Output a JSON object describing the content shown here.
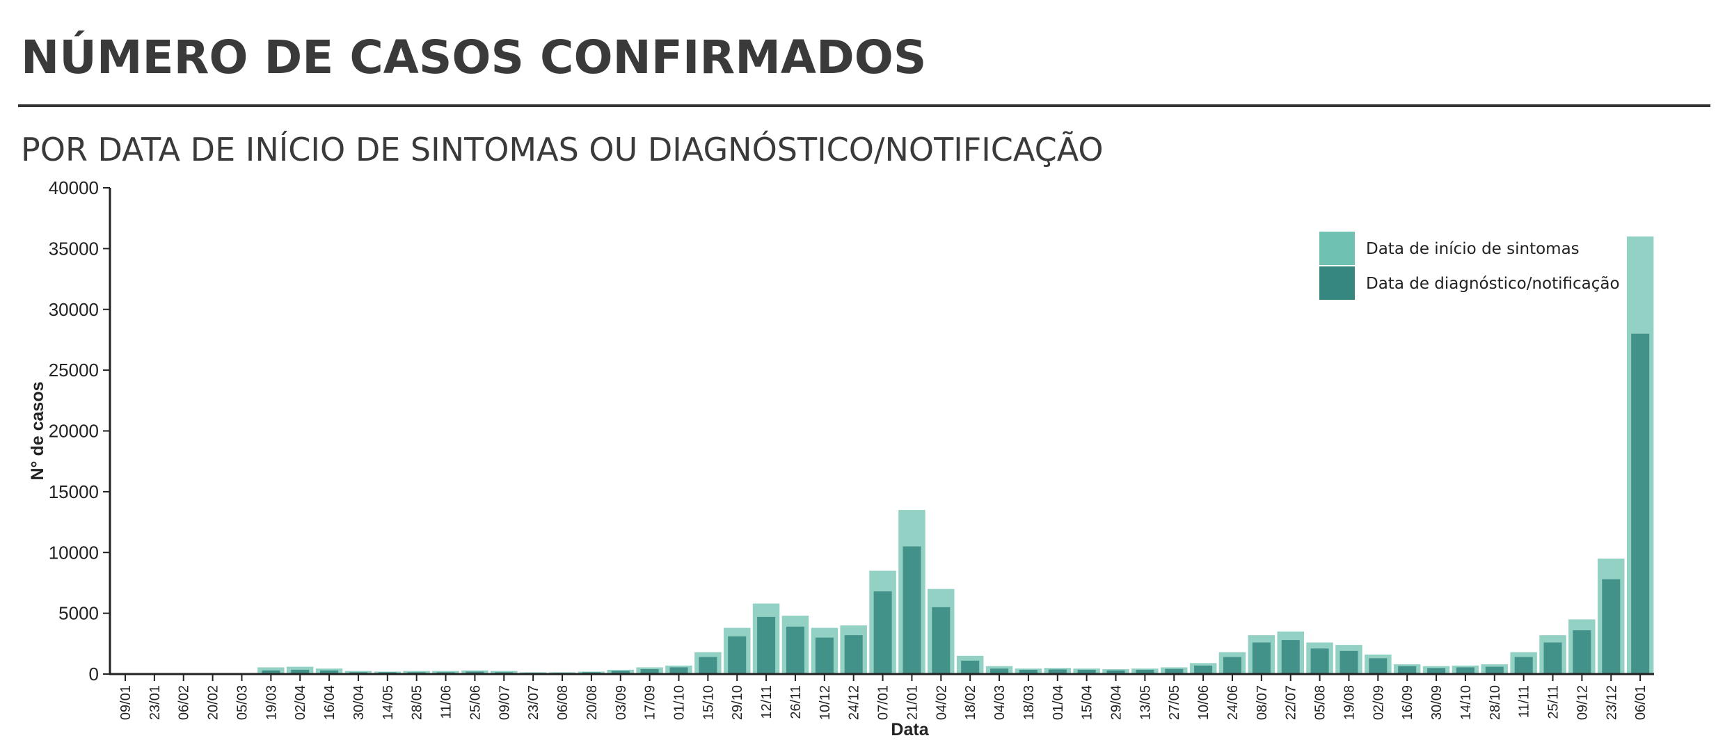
{
  "header": {
    "title": "NÚMERO DE CASOS CONFIRMADOS",
    "subtitle": "POR DATA DE INÍCIO DE SINTOMAS OU DIAGNÓSTICO/NOTIFICAÇÃO"
  },
  "colors": {
    "symptom_onset": "#6fc2b2",
    "diagnosis": "#35877f",
    "axis": "#222222"
  },
  "legend": {
    "placement": "top-right",
    "items": [
      {
        "label": "Data de início de sintomas",
        "color": "#6fc2b2"
      },
      {
        "label": "Data de diagnóstico/notificação",
        "color": "#35877f"
      }
    ]
  },
  "chart_data": {
    "type": "bar",
    "xlabel": "Data",
    "ylabel": "N° de casos",
    "ylim": [
      0,
      40000
    ],
    "yticks": [
      0,
      5000,
      10000,
      15000,
      20000,
      25000,
      30000,
      35000,
      40000
    ],
    "grid": false,
    "categories": [
      "09/01",
      "23/01",
      "06/02",
      "20/02",
      "05/03",
      "19/03",
      "02/04",
      "16/04",
      "30/04",
      "14/05",
      "28/05",
      "11/06",
      "25/06",
      "09/07",
      "23/07",
      "06/08",
      "20/08",
      "03/09",
      "17/09",
      "01/10",
      "15/10",
      "29/10",
      "12/11",
      "26/11",
      "10/12",
      "24/12",
      "07/01",
      "21/01",
      "04/02",
      "18/02",
      "04/03",
      "18/03",
      "01/04",
      "15/04",
      "29/04",
      "13/05",
      "27/05",
      "10/06",
      "24/06",
      "08/07",
      "22/07",
      "05/08",
      "19/08",
      "02/09",
      "16/09",
      "30/09",
      "14/10",
      "28/10",
      "11/11",
      "25/11",
      "09/12",
      "23/12",
      "06/01"
    ],
    "series": [
      {
        "name": "Data de início de sintomas",
        "values": [
          0,
          0,
          0,
          0,
          50,
          550,
          600,
          450,
          250,
          200,
          250,
          250,
          300,
          250,
          150,
          150,
          200,
          350,
          550,
          700,
          1800,
          3800,
          5800,
          4800,
          3800,
          4000,
          8500,
          13500,
          7000,
          1500,
          650,
          450,
          500,
          450,
          400,
          450,
          550,
          900,
          1800,
          3200,
          3500,
          2600,
          2400,
          1600,
          800,
          650,
          700,
          800,
          1800,
          3200,
          4500,
          9500,
          36000
        ]
      },
      {
        "name": "Data de diagnóstico/notificação",
        "values": [
          0,
          0,
          0,
          0,
          30,
          300,
          350,
          300,
          150,
          150,
          150,
          150,
          200,
          150,
          100,
          100,
          150,
          250,
          400,
          550,
          1400,
          3100,
          4700,
          3900,
          3000,
          3200,
          6800,
          10500,
          5500,
          1100,
          450,
          350,
          380,
          350,
          300,
          350,
          420,
          700,
          1400,
          2600,
          2800,
          2100,
          1900,
          1300,
          650,
          500,
          550,
          600,
          1400,
          2600,
          3600,
          7800,
          28000
        ]
      }
    ]
  }
}
